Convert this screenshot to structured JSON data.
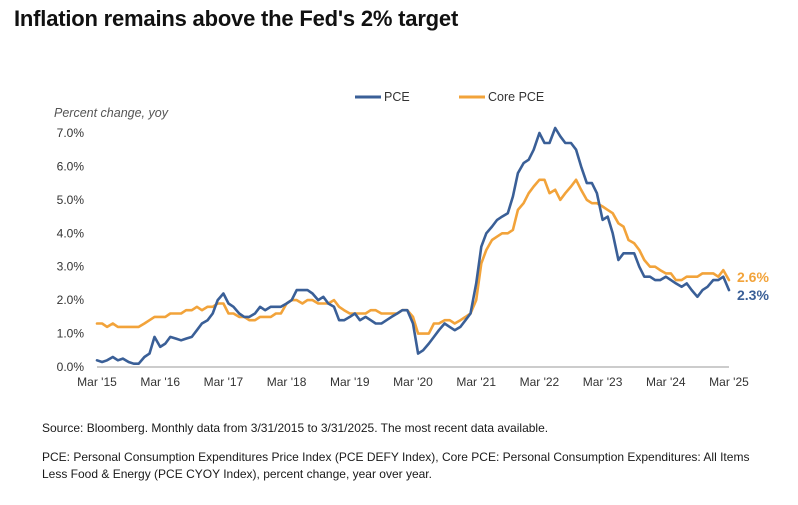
{
  "title": "Inflation remains above the Fed's 2% target",
  "source_note": "Source: Bloomberg. Monthly data from 3/31/2015 to 3/31/2025. The most recent data available.",
  "definition_note": "PCE: Personal Consumption Expenditures Price Index (PCE DEFY Index), Core PCE: Personal Consumption Expenditures: All Items Less Food & Energy (PCE CYOY Index), percent change, year over year.",
  "colors": {
    "pce": "#3a5f97",
    "core_pce": "#f2a33a",
    "axis_text": "#333333",
    "gridline": "#bdbdbd"
  },
  "chart_data": {
    "type": "line",
    "ylabel": "Percent change, yoy",
    "ylim": [
      0,
      7
    ],
    "xlim": [
      2015.17,
      2025.17
    ],
    "yticks": [
      0,
      1,
      2,
      3,
      4,
      5,
      6,
      7
    ],
    "ytick_labels": [
      "0.0%",
      "1.0%",
      "2.0%",
      "3.0%",
      "4.0%",
      "5.0%",
      "6.0%",
      "7.0%"
    ],
    "xticks": [
      2015.17,
      2016.17,
      2017.17,
      2018.17,
      2019.17,
      2020.17,
      2021.17,
      2022.17,
      2023.17,
      2024.17,
      2025.17
    ],
    "xtick_labels": [
      "Mar '15",
      "Mar '16",
      "Mar '17",
      "Mar '18",
      "Mar '19",
      "Mar '20",
      "Mar '21",
      "Mar '22",
      "Mar '23",
      "Mar '24",
      "Mar '25"
    ],
    "legend_position": "top",
    "grid": false,
    "series": [
      {
        "name": "PCE",
        "color": "#3a5f97",
        "end_label": "2.3%",
        "points": [
          [
            2015.17,
            0.2
          ],
          [
            2015.25,
            0.15
          ],
          [
            2015.33,
            0.2
          ],
          [
            2015.42,
            0.3
          ],
          [
            2015.5,
            0.2
          ],
          [
            2015.58,
            0.25
          ],
          [
            2015.67,
            0.15
          ],
          [
            2015.75,
            0.1
          ],
          [
            2015.83,
            0.1
          ],
          [
            2015.92,
            0.3
          ],
          [
            2016.0,
            0.4
          ],
          [
            2016.08,
            0.9
          ],
          [
            2016.17,
            0.6
          ],
          [
            2016.25,
            0.7
          ],
          [
            2016.33,
            0.9
          ],
          [
            2016.42,
            0.85
          ],
          [
            2016.5,
            0.8
          ],
          [
            2016.58,
            0.85
          ],
          [
            2016.67,
            0.9
          ],
          [
            2016.75,
            1.1
          ],
          [
            2016.83,
            1.3
          ],
          [
            2016.92,
            1.4
          ],
          [
            2017.0,
            1.6
          ],
          [
            2017.08,
            2.0
          ],
          [
            2017.17,
            2.2
          ],
          [
            2017.25,
            1.9
          ],
          [
            2017.33,
            1.8
          ],
          [
            2017.42,
            1.6
          ],
          [
            2017.5,
            1.5
          ],
          [
            2017.58,
            1.5
          ],
          [
            2017.67,
            1.6
          ],
          [
            2017.75,
            1.8
          ],
          [
            2017.83,
            1.7
          ],
          [
            2017.92,
            1.8
          ],
          [
            2018.0,
            1.8
          ],
          [
            2018.08,
            1.8
          ],
          [
            2018.17,
            1.9
          ],
          [
            2018.25,
            2.0
          ],
          [
            2018.33,
            2.3
          ],
          [
            2018.42,
            2.3
          ],
          [
            2018.5,
            2.3
          ],
          [
            2018.58,
            2.2
          ],
          [
            2018.67,
            2.0
          ],
          [
            2018.75,
            2.1
          ],
          [
            2018.83,
            1.9
          ],
          [
            2018.92,
            1.8
          ],
          [
            2019.0,
            1.4
          ],
          [
            2019.08,
            1.4
          ],
          [
            2019.17,
            1.5
          ],
          [
            2019.25,
            1.6
          ],
          [
            2019.33,
            1.4
          ],
          [
            2019.42,
            1.5
          ],
          [
            2019.5,
            1.4
          ],
          [
            2019.58,
            1.3
          ],
          [
            2019.67,
            1.3
          ],
          [
            2019.75,
            1.4
          ],
          [
            2019.83,
            1.5
          ],
          [
            2019.92,
            1.6
          ],
          [
            2020.0,
            1.7
          ],
          [
            2020.08,
            1.7
          ],
          [
            2020.17,
            1.3
          ],
          [
            2020.25,
            0.4
          ],
          [
            2020.33,
            0.5
          ],
          [
            2020.42,
            0.7
          ],
          [
            2020.5,
            0.9
          ],
          [
            2020.58,
            1.1
          ],
          [
            2020.67,
            1.3
          ],
          [
            2020.75,
            1.2
          ],
          [
            2020.83,
            1.1
          ],
          [
            2020.92,
            1.2
          ],
          [
            2021.0,
            1.4
          ],
          [
            2021.08,
            1.6
          ],
          [
            2021.17,
            2.5
          ],
          [
            2021.25,
            3.6
          ],
          [
            2021.33,
            4.0
          ],
          [
            2021.42,
            4.2
          ],
          [
            2021.5,
            4.4
          ],
          [
            2021.58,
            4.5
          ],
          [
            2021.67,
            4.6
          ],
          [
            2021.75,
            5.1
          ],
          [
            2021.83,
            5.8
          ],
          [
            2021.92,
            6.1
          ],
          [
            2022.0,
            6.2
          ],
          [
            2022.08,
            6.5
          ],
          [
            2022.17,
            7.0
          ],
          [
            2022.25,
            6.7
          ],
          [
            2022.33,
            6.7
          ],
          [
            2022.42,
            7.15
          ],
          [
            2022.5,
            6.9
          ],
          [
            2022.58,
            6.7
          ],
          [
            2022.67,
            6.7
          ],
          [
            2022.75,
            6.5
          ],
          [
            2022.83,
            6.0
          ],
          [
            2022.92,
            5.5
          ],
          [
            2023.0,
            5.5
          ],
          [
            2023.08,
            5.2
          ],
          [
            2023.17,
            4.4
          ],
          [
            2023.25,
            4.5
          ],
          [
            2023.33,
            4.0
          ],
          [
            2023.42,
            3.2
          ],
          [
            2023.5,
            3.4
          ],
          [
            2023.58,
            3.4
          ],
          [
            2023.67,
            3.4
          ],
          [
            2023.75,
            3.0
          ],
          [
            2023.83,
            2.7
          ],
          [
            2023.92,
            2.7
          ],
          [
            2024.0,
            2.6
          ],
          [
            2024.08,
            2.6
          ],
          [
            2024.17,
            2.7
          ],
          [
            2024.25,
            2.6
          ],
          [
            2024.33,
            2.5
          ],
          [
            2024.42,
            2.4
          ],
          [
            2024.5,
            2.5
          ],
          [
            2024.58,
            2.3
          ],
          [
            2024.67,
            2.1
          ],
          [
            2024.75,
            2.3
          ],
          [
            2024.83,
            2.4
          ],
          [
            2024.92,
            2.6
          ],
          [
            2025.0,
            2.6
          ],
          [
            2025.08,
            2.7
          ],
          [
            2025.17,
            2.3
          ]
        ]
      },
      {
        "name": "Core PCE",
        "color": "#f2a33a",
        "end_label": "2.6%",
        "points": [
          [
            2015.17,
            1.3
          ],
          [
            2015.25,
            1.3
          ],
          [
            2015.33,
            1.2
          ],
          [
            2015.42,
            1.3
          ],
          [
            2015.5,
            1.2
          ],
          [
            2015.58,
            1.2
          ],
          [
            2015.67,
            1.2
          ],
          [
            2015.75,
            1.2
          ],
          [
            2015.83,
            1.2
          ],
          [
            2015.92,
            1.3
          ],
          [
            2016.0,
            1.4
          ],
          [
            2016.08,
            1.5
          ],
          [
            2016.17,
            1.5
          ],
          [
            2016.25,
            1.5
          ],
          [
            2016.33,
            1.6
          ],
          [
            2016.42,
            1.6
          ],
          [
            2016.5,
            1.6
          ],
          [
            2016.58,
            1.7
          ],
          [
            2016.67,
            1.7
          ],
          [
            2016.75,
            1.8
          ],
          [
            2016.83,
            1.7
          ],
          [
            2016.92,
            1.8
          ],
          [
            2017.0,
            1.8
          ],
          [
            2017.08,
            1.9
          ],
          [
            2017.17,
            1.9
          ],
          [
            2017.25,
            1.6
          ],
          [
            2017.33,
            1.6
          ],
          [
            2017.42,
            1.5
          ],
          [
            2017.5,
            1.5
          ],
          [
            2017.58,
            1.4
          ],
          [
            2017.67,
            1.4
          ],
          [
            2017.75,
            1.5
          ],
          [
            2017.83,
            1.5
          ],
          [
            2017.92,
            1.5
          ],
          [
            2018.0,
            1.6
          ],
          [
            2018.08,
            1.6
          ],
          [
            2018.17,
            1.9
          ],
          [
            2018.25,
            2.0
          ],
          [
            2018.33,
            2.0
          ],
          [
            2018.42,
            1.9
          ],
          [
            2018.5,
            2.0
          ],
          [
            2018.58,
            2.0
          ],
          [
            2018.67,
            1.9
          ],
          [
            2018.75,
            1.9
          ],
          [
            2018.83,
            1.9
          ],
          [
            2018.92,
            2.0
          ],
          [
            2019.0,
            1.8
          ],
          [
            2019.08,
            1.7
          ],
          [
            2019.17,
            1.6
          ],
          [
            2019.25,
            1.6
          ],
          [
            2019.33,
            1.6
          ],
          [
            2019.42,
            1.6
          ],
          [
            2019.5,
            1.7
          ],
          [
            2019.58,
            1.7
          ],
          [
            2019.67,
            1.6
          ],
          [
            2019.75,
            1.6
          ],
          [
            2019.83,
            1.6
          ],
          [
            2019.92,
            1.6
          ],
          [
            2020.0,
            1.7
          ],
          [
            2020.08,
            1.7
          ],
          [
            2020.17,
            1.5
          ],
          [
            2020.25,
            1.0
          ],
          [
            2020.33,
            1.0
          ],
          [
            2020.42,
            1.0
          ],
          [
            2020.5,
            1.3
          ],
          [
            2020.58,
            1.3
          ],
          [
            2020.67,
            1.4
          ],
          [
            2020.75,
            1.4
          ],
          [
            2020.83,
            1.3
          ],
          [
            2020.92,
            1.4
          ],
          [
            2021.0,
            1.5
          ],
          [
            2021.08,
            1.6
          ],
          [
            2021.17,
            2.0
          ],
          [
            2021.25,
            3.1
          ],
          [
            2021.33,
            3.5
          ],
          [
            2021.42,
            3.8
          ],
          [
            2021.5,
            3.9
          ],
          [
            2021.58,
            4.0
          ],
          [
            2021.67,
            4.0
          ],
          [
            2021.75,
            4.1
          ],
          [
            2021.83,
            4.7
          ],
          [
            2021.92,
            4.9
          ],
          [
            2022.0,
            5.2
          ],
          [
            2022.08,
            5.4
          ],
          [
            2022.17,
            5.6
          ],
          [
            2022.25,
            5.6
          ],
          [
            2022.33,
            5.2
          ],
          [
            2022.42,
            5.3
          ],
          [
            2022.5,
            5.0
          ],
          [
            2022.58,
            5.2
          ],
          [
            2022.67,
            5.4
          ],
          [
            2022.75,
            5.6
          ],
          [
            2022.83,
            5.3
          ],
          [
            2022.92,
            5.0
          ],
          [
            2023.0,
            4.9
          ],
          [
            2023.08,
            4.9
          ],
          [
            2023.17,
            4.8
          ],
          [
            2023.25,
            4.7
          ],
          [
            2023.33,
            4.6
          ],
          [
            2023.42,
            4.3
          ],
          [
            2023.5,
            4.2
          ],
          [
            2023.58,
            3.8
          ],
          [
            2023.67,
            3.7
          ],
          [
            2023.75,
            3.5
          ],
          [
            2023.83,
            3.2
          ],
          [
            2023.92,
            3.0
          ],
          [
            2024.0,
            3.0
          ],
          [
            2024.08,
            2.9
          ],
          [
            2024.17,
            2.8
          ],
          [
            2024.25,
            2.8
          ],
          [
            2024.33,
            2.6
          ],
          [
            2024.42,
            2.6
          ],
          [
            2024.5,
            2.7
          ],
          [
            2024.58,
            2.7
          ],
          [
            2024.67,
            2.7
          ],
          [
            2024.75,
            2.8
          ],
          [
            2024.83,
            2.8
          ],
          [
            2024.92,
            2.8
          ],
          [
            2025.0,
            2.7
          ],
          [
            2025.08,
            2.9
          ],
          [
            2025.17,
            2.6
          ]
        ]
      }
    ]
  }
}
